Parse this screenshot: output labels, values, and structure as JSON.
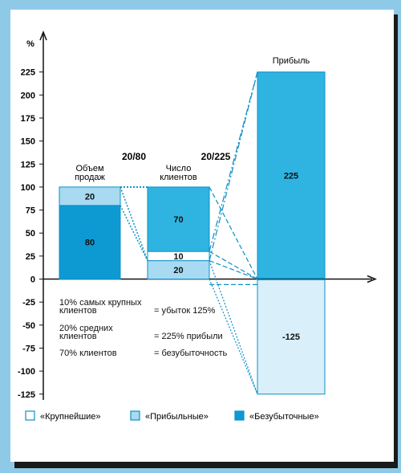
{
  "colors": {
    "border": "#8fc9e8",
    "dark": "#0d9ad3",
    "medium": "#2fb4e2",
    "light": "#a8daf2",
    "pale": "#d9eff9",
    "line": "#0d8fc7",
    "axis": "#111111"
  },
  "chart_data": {
    "type": "bar",
    "ylabel": "%",
    "ylim": [
      -125,
      230
    ],
    "yticks": [
      225,
      200,
      175,
      150,
      125,
      100,
      75,
      50,
      25,
      0,
      -25,
      -50,
      -75,
      -100,
      -125
    ],
    "bars": [
      {
        "label": "Объем\nпродаж",
        "segments": [
          {
            "from": 0,
            "to": 80,
            "value_label": "80",
            "fill": "#0d9ad3"
          },
          {
            "from": 80,
            "to": 100,
            "value_label": "20",
            "fill": "#a8daf2"
          }
        ]
      },
      {
        "label": "Число\nклиентов",
        "segments": [
          {
            "from": 0,
            "to": 20,
            "value_label": "20",
            "fill": "#a8daf2"
          },
          {
            "from": 20,
            "to": 30,
            "value_label": "10",
            "fill": "#ffffff"
          },
          {
            "from": 30,
            "to": 100,
            "value_label": "70",
            "fill": "#2fb4e2"
          }
        ]
      },
      {
        "label": "Прибыль",
        "segments": [
          {
            "from": 0,
            "to": 225,
            "value_label": "225",
            "fill": "#2fb4e2"
          },
          {
            "from": -125,
            "to": 0,
            "value_label": "-125",
            "fill": "#d9eff9"
          }
        ]
      }
    ],
    "ratio_labels": [
      "20/80",
      "20/225"
    ],
    "legend": [
      "«Крупнейшие»",
      "«Прибыльные»",
      "«Безубыточные»"
    ]
  },
  "notes": [
    {
      "left": "10% самых крупных\nклиентов",
      "right": "= убыток 125%"
    },
    {
      "left": "20% средних\nклиентов",
      "right": "= 225% прибыли"
    },
    {
      "left": "70% клиентов",
      "right": "= безубыточность"
    }
  ]
}
